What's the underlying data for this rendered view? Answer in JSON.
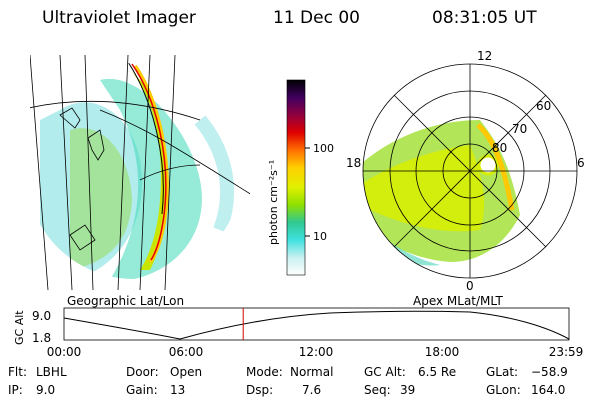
{
  "header": {
    "instrument": "Ultraviolet Imager",
    "date": "11 Dec 00",
    "time": "08:31:05 UT"
  },
  "geo_panel": {
    "caption": "Geographic Lat/Lon"
  },
  "polar_panel": {
    "caption": "Apex MLat/MLT",
    "mlt_labels": [
      "12",
      "18",
      "6",
      "0"
    ],
    "mlat_labels": [
      "60",
      "70",
      "80"
    ]
  },
  "colorbar": {
    "label": "photon cm⁻²s⁻¹",
    "scale": "log",
    "ticks": [
      "100",
      "10"
    ],
    "colors": [
      "#000000",
      "#400060",
      "#900040",
      "#e00000",
      "#ff7000",
      "#ffd000",
      "#e0f000",
      "#90e000",
      "#30c890",
      "#40e0e0",
      "#c8f0f0",
      "#ffffff"
    ]
  },
  "altitude_plot": {
    "ylabel": "GC Alt",
    "yticks": [
      "9.0",
      "1.8"
    ],
    "xticks": [
      "00:00",
      "06:00",
      "12:00",
      "18:00",
      "23:59"
    ],
    "current_time_marker": "08:31",
    "marker_color": "#d00000"
  },
  "info": {
    "flt_label": "Flt:",
    "flt": "LBHL",
    "ip_label": "IP:",
    "ip": "9.0",
    "door_label": "Door:",
    "door": "Open",
    "gain_label": "Gain:",
    "gain": "13",
    "mode_label": "Mode:",
    "mode": "Normal",
    "dsp_label": "Dsp:",
    "dsp": "7.6",
    "gcalt_label": "GC Alt:",
    "gcalt": "6.5 Re",
    "seq_label": "Seq:",
    "seq": "39",
    "glat_label": "GLat:",
    "glat": "−58.9",
    "glon_label": "GLon:",
    "glon": "164.0"
  }
}
